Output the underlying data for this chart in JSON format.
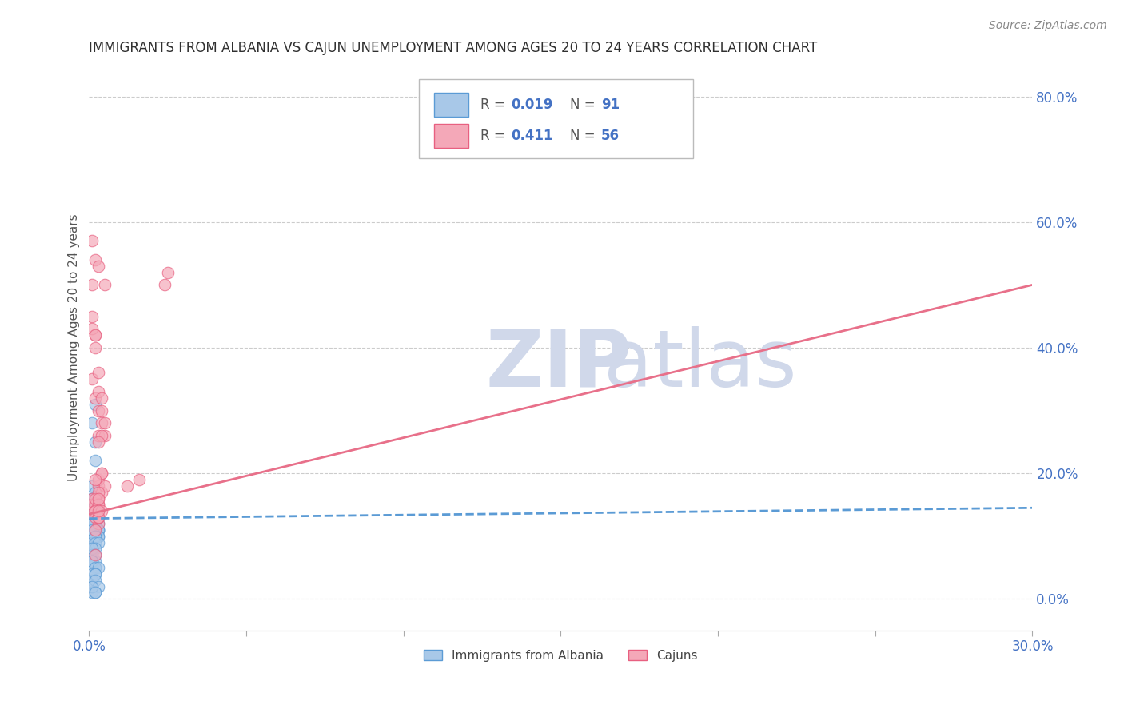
{
  "title": "IMMIGRANTS FROM ALBANIA VS CAJUN UNEMPLOYMENT AMONG AGES 20 TO 24 YEARS CORRELATION CHART",
  "source": "Source: ZipAtlas.com",
  "ylabel": "Unemployment Among Ages 20 to 24 years",
  "xlim": [
    0.0,
    0.3
  ],
  "ylim": [
    -0.05,
    0.85
  ],
  "xticks": [
    0.0,
    0.05,
    0.1,
    0.15,
    0.2,
    0.25,
    0.3
  ],
  "xticklabels_ends": [
    "0.0%",
    "",
    "",
    "",
    "",
    "",
    "30.0%"
  ],
  "yticks_right": [
    0.0,
    0.2,
    0.4,
    0.6,
    0.8
  ],
  "ytick_right_labels": [
    "0.0%",
    "20.0%",
    "40.0%",
    "60.0%",
    "80.0%"
  ],
  "legend_label1": "Immigrants from Albania",
  "legend_label2": "Cajuns",
  "R1": "0.019",
  "N1": "91",
  "R2": "0.411",
  "N2": "56",
  "color_albania": "#a8c8e8",
  "color_cajun": "#f4a8b8",
  "color_albania_edge": "#5b9bd5",
  "color_cajun_edge": "#e86080",
  "color_albania_line": "#5b9bd5",
  "color_cajun_line": "#e8708a",
  "color_axis_text": "#4472c4",
  "color_title": "#303030",
  "color_source": "#888888",
  "watermark_zip": "ZIP",
  "watermark_atlas": "atlas",
  "watermark_color": "#d0d8ea",
  "albania_x": [
    0.001,
    0.002,
    0.001,
    0.001,
    0.002,
    0.002,
    0.001,
    0.001,
    0.002,
    0.001,
    0.002,
    0.001,
    0.001,
    0.002,
    0.001,
    0.002,
    0.001,
    0.002,
    0.001,
    0.001,
    0.002,
    0.001,
    0.002,
    0.001,
    0.001,
    0.002,
    0.001,
    0.001,
    0.002,
    0.001,
    0.002,
    0.001,
    0.001,
    0.002,
    0.001,
    0.002,
    0.001,
    0.002,
    0.001,
    0.001,
    0.003,
    0.002,
    0.003,
    0.002,
    0.001,
    0.003,
    0.002,
    0.001,
    0.003,
    0.002,
    0.001,
    0.003,
    0.002,
    0.001,
    0.002,
    0.003,
    0.001,
    0.002,
    0.003,
    0.001,
    0.002,
    0.003,
    0.001,
    0.002,
    0.001,
    0.002,
    0.001,
    0.002,
    0.001,
    0.003,
    0.002,
    0.001,
    0.002,
    0.001,
    0.002,
    0.001,
    0.002,
    0.001,
    0.002,
    0.001,
    0.003,
    0.002,
    0.001,
    0.002,
    0.001,
    0.002,
    0.001,
    0.003,
    0.002,
    0.001,
    0.002
  ],
  "albania_y": [
    0.14,
    0.31,
    0.28,
    0.1,
    0.25,
    0.22,
    0.12,
    0.08,
    0.15,
    0.09,
    0.12,
    0.1,
    0.16,
    0.14,
    0.13,
    0.11,
    0.18,
    0.17,
    0.13,
    0.1,
    0.12,
    0.14,
    0.13,
    0.16,
    0.14,
    0.15,
    0.12,
    0.15,
    0.13,
    0.16,
    0.14,
    0.12,
    0.13,
    0.15,
    0.12,
    0.14,
    0.13,
    0.12,
    0.14,
    0.15,
    0.14,
    0.13,
    0.12,
    0.14,
    0.11,
    0.13,
    0.12,
    0.13,
    0.11,
    0.12,
    0.13,
    0.11,
    0.12,
    0.13,
    0.12,
    0.11,
    0.12,
    0.11,
    0.1,
    0.12,
    0.11,
    0.1,
    0.11,
    0.1,
    0.09,
    0.1,
    0.08,
    0.09,
    0.07,
    0.09,
    0.08,
    0.07,
    0.06,
    0.08,
    0.07,
    0.06,
    0.05,
    0.06,
    0.05,
    0.04,
    0.05,
    0.04,
    0.03,
    0.04,
    0.02,
    0.03,
    0.01,
    0.02,
    0.01,
    0.02,
    0.01
  ],
  "cajun_x": [
    0.001,
    0.001,
    0.001,
    0.002,
    0.001,
    0.002,
    0.001,
    0.001,
    0.002,
    0.001,
    0.002,
    0.001,
    0.002,
    0.003,
    0.003,
    0.002,
    0.003,
    0.004,
    0.003,
    0.003,
    0.004,
    0.005,
    0.003,
    0.004,
    0.003,
    0.004,
    0.005,
    0.002,
    0.003,
    0.004,
    0.005,
    0.004,
    0.003,
    0.005,
    0.002,
    0.003,
    0.004,
    0.003,
    0.024,
    0.025,
    0.002,
    0.003,
    0.003,
    0.002,
    0.003,
    0.002,
    0.003,
    0.002,
    0.003,
    0.004,
    0.003,
    0.002,
    0.003,
    0.002,
    0.016,
    0.012
  ],
  "cajun_y": [
    0.14,
    0.16,
    0.57,
    0.54,
    0.5,
    0.42,
    0.15,
    0.45,
    0.4,
    0.35,
    0.15,
    0.43,
    0.42,
    0.36,
    0.53,
    0.32,
    0.3,
    0.28,
    0.33,
    0.26,
    0.32,
    0.5,
    0.18,
    0.17,
    0.19,
    0.3,
    0.26,
    0.14,
    0.15,
    0.26,
    0.28,
    0.2,
    0.25,
    0.18,
    0.14,
    0.16,
    0.2,
    0.17,
    0.5,
    0.52,
    0.16,
    0.15,
    0.12,
    0.14,
    0.16,
    0.13,
    0.13,
    0.11,
    0.13,
    0.14,
    0.13,
    0.19,
    0.14,
    0.07,
    0.19,
    0.18
  ],
  "albania_trend_x": [
    0.0,
    0.3
  ],
  "albania_trend_y": [
    0.128,
    0.145
  ],
  "cajun_trend_x": [
    0.0,
    0.3
  ],
  "cajun_trend_y": [
    0.135,
    0.5
  ]
}
